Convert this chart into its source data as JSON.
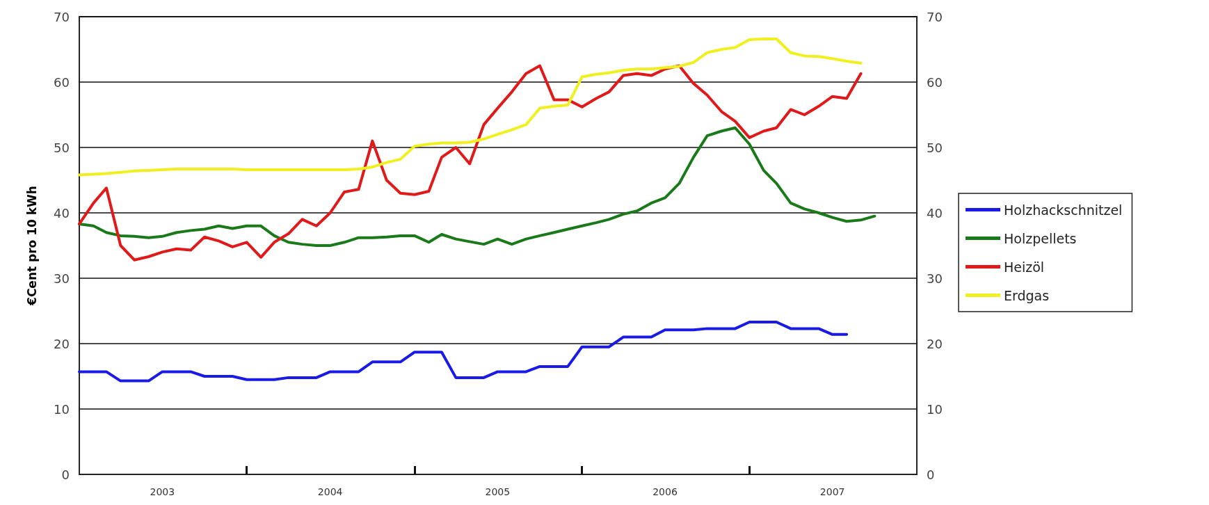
{
  "chart_data": {
    "type": "line",
    "ylabel": "€Cent pro 10 kWh",
    "x": [
      "2003-01",
      "2003-02",
      "2003-03",
      "2003-04",
      "2003-05",
      "2003-06",
      "2003-07",
      "2003-08",
      "2003-09",
      "2003-10",
      "2003-11",
      "2003-12",
      "2004-01",
      "2004-02",
      "2004-03",
      "2004-04",
      "2004-05",
      "2004-06",
      "2004-07",
      "2004-08",
      "2004-09",
      "2004-10",
      "2004-11",
      "2004-12",
      "2005-01",
      "2005-02",
      "2005-03",
      "2005-04",
      "2005-05",
      "2005-06",
      "2005-07",
      "2005-08",
      "2005-09",
      "2005-10",
      "2005-11",
      "2005-12",
      "2006-01",
      "2006-02",
      "2006-03",
      "2006-04",
      "2006-05",
      "2006-06",
      "2006-07",
      "2006-08",
      "2006-09",
      "2006-10",
      "2006-11",
      "2006-12",
      "2007-01",
      "2007-02",
      "2007-03",
      "2007-04",
      "2007-05",
      "2007-06",
      "2007-07",
      "2007-08",
      "2007-09",
      "2007-10"
    ],
    "series": [
      {
        "name": "Holzhackschnitzel",
        "color": "#1a1ae6",
        "values": [
          15.7,
          15.7,
          15.7,
          14.3,
          14.3,
          14.3,
          15.7,
          15.7,
          15.7,
          15,
          15,
          15,
          14.5,
          14.5,
          14.5,
          14.8,
          14.8,
          14.8,
          15.7,
          15.7,
          15.7,
          17.2,
          17.2,
          17.2,
          18.7,
          18.7,
          18.7,
          14.8,
          14.8,
          14.8,
          15.7,
          15.7,
          15.7,
          16.5,
          16.5,
          16.5,
          19.5,
          19.5,
          19.5,
          21,
          21,
          21,
          22.1,
          22.1,
          22.1,
          22.3,
          22.3,
          22.3,
          23.3,
          23.3,
          23.3,
          22.3,
          22.3,
          22.3,
          21.4,
          21.4,
          null,
          null
        ]
      },
      {
        "name": "Holzpellets",
        "color": "#1a7a1a",
        "values": [
          38.3,
          38,
          37,
          36.5,
          36.4,
          36.2,
          36.4,
          37,
          37.3,
          37.5,
          38,
          37.6,
          38,
          38,
          36.5,
          35.5,
          35.2,
          35,
          35,
          35.5,
          36.2,
          36.2,
          36.3,
          36.5,
          36.5,
          35.5,
          36.7,
          36,
          35.6,
          35.2,
          36,
          35.2,
          36,
          36.5,
          37,
          37.5,
          38,
          38.5,
          39,
          39.8,
          40.3,
          41.5,
          42.3,
          44.5,
          48.5,
          51.8,
          52.5,
          53,
          50.5,
          46.5,
          44.5,
          41.5,
          40.6,
          40,
          39.3,
          38.7,
          38.9,
          39.5
        ]
      },
      {
        "name": "Heizöl",
        "color": "#e01a1a",
        "values": [
          38.3,
          41.5,
          43.8,
          35,
          32.8,
          33.3,
          34,
          34.5,
          34.3,
          36.3,
          35.7,
          34.8,
          35.5,
          33.2,
          35.5,
          36.8,
          39,
          38,
          40,
          43.2,
          43.6,
          51,
          45,
          43,
          42.8,
          43.3,
          48.5,
          50,
          47.5,
          53.5,
          56,
          58.5,
          61.3,
          62.5,
          57.3,
          57.3,
          56.2,
          57.5,
          58.5,
          61,
          61.3,
          61,
          62,
          62.5,
          59.8,
          58,
          55.5,
          54,
          51.5,
          52.5,
          53,
          55.8,
          55,
          56.3,
          57.8,
          57.5,
          61.3,
          null
        ]
      },
      {
        "name": "Erdgas",
        "color": "#f0f020",
        "values": [
          45.8,
          45.9,
          46,
          46.2,
          46.4,
          46.5,
          46.6,
          46.7,
          46.7,
          46.7,
          46.7,
          46.7,
          46.6,
          46.6,
          46.6,
          46.6,
          46.6,
          46.6,
          46.6,
          46.6,
          46.7,
          47,
          47.7,
          48.2,
          50.2,
          50.5,
          50.7,
          50.7,
          50.8,
          51.3,
          52,
          52.7,
          53.5,
          56,
          56.3,
          56.5,
          60.8,
          61.2,
          61.4,
          61.8,
          62,
          62,
          62.2,
          62.4,
          63,
          64.5,
          65,
          65.3,
          66.5,
          66.6,
          66.6,
          64.5,
          64,
          63.9,
          63.6,
          63.2,
          62.9,
          null
        ]
      }
    ],
    "xlim": [
      "2003-01",
      "2008-01"
    ],
    "xticks": [
      {
        "value": "2003-07",
        "label": "2003"
      },
      {
        "value": "2004-01",
        "label": null
      },
      {
        "value": "2004-07",
        "label": "2004"
      },
      {
        "value": "2005-01",
        "label": null
      },
      {
        "value": "2005-07",
        "label": "2005"
      },
      {
        "value": "2006-01",
        "label": null
      },
      {
        "value": "2006-07",
        "label": "2006"
      },
      {
        "value": "2007-01",
        "label": null
      },
      {
        "value": "2007-07",
        "label": "2007"
      }
    ],
    "ylim": [
      0,
      70
    ],
    "yticks": [
      0,
      10,
      20,
      30,
      40,
      50,
      60,
      70
    ],
    "y2lim": [
      0,
      70
    ],
    "y2ticks": [
      0,
      10,
      20,
      30,
      40,
      50,
      60,
      70
    ],
    "grid": "y",
    "legend": "right",
    "marker": "none",
    "line_style": "solid"
  }
}
